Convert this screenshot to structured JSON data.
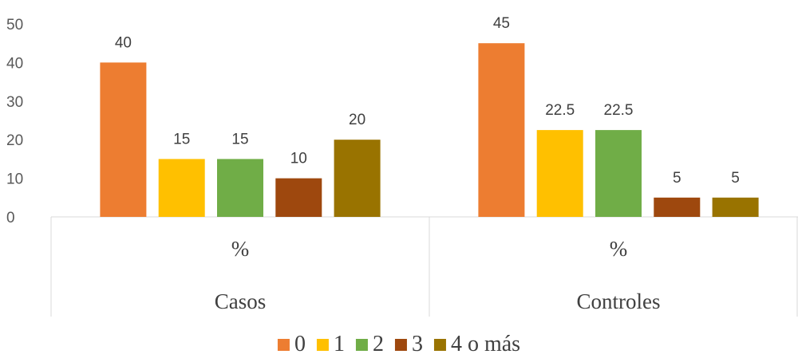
{
  "chart_data": {
    "type": "bar",
    "groups": [
      {
        "name": "Casos",
        "sublabel": "%"
      },
      {
        "name": "Controles",
        "sublabel": "%"
      }
    ],
    "series": [
      {
        "name": "0",
        "color": "#ED7D31",
        "values": [
          40,
          45
        ],
        "labels": [
          "40",
          "45"
        ]
      },
      {
        "name": "1",
        "color": "#FFC000",
        "values": [
          15,
          22.5
        ],
        "labels": [
          "15",
          "22.5"
        ]
      },
      {
        "name": "2",
        "color": "#70AD47",
        "values": [
          15,
          22.5
        ],
        "labels": [
          "15",
          "22.5"
        ]
      },
      {
        "name": "3",
        "color": "#9E480E",
        "values": [
          10,
          5
        ],
        "labels": [
          "10",
          "5"
        ]
      },
      {
        "name": "4 o más",
        "color": "#997300",
        "values": [
          20,
          5
        ],
        "labels": [
          "20",
          "5"
        ]
      }
    ],
    "yticks": [
      "0",
      "10",
      "20",
      "30",
      "40",
      "50"
    ],
    "ylim": [
      0,
      50
    ],
    "grid": false,
    "legend_position": "bottom"
  }
}
